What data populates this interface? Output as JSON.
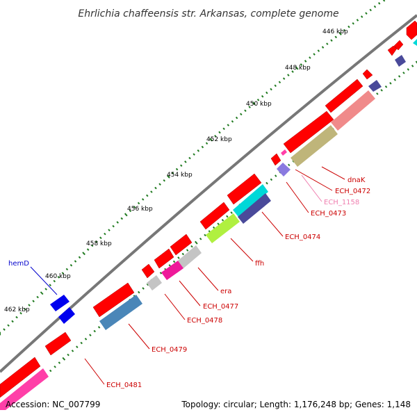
{
  "title": "Ehrlichia chaffeensis str. Arkansas, complete genome",
  "footer": {
    "accession": "Accession: NC_007799",
    "stats": "Topology: circular; Length: 1,176,248 bp; Genes: 1,148"
  },
  "ticks": [
    "446 kbp",
    "448 kbp",
    "450 kbp",
    "452 kbp",
    "454 kbp",
    "456 kbp",
    "458 kbp",
    "460 kbp",
    "462 kbp"
  ],
  "gene_labels": [
    {
      "text": "hemD",
      "color": "#0000cc"
    },
    {
      "text": "dnaK",
      "color": "#cc0000"
    },
    {
      "text": "ECH_0472",
      "color": "#cc0000"
    },
    {
      "text": "ECH_1158",
      "color": "#f07fb0"
    },
    {
      "text": "ECH_0473",
      "color": "#cc0000"
    },
    {
      "text": "ECH_0474",
      "color": "#cc0000"
    },
    {
      "text": "ffh",
      "color": "#cc0000"
    },
    {
      "text": "era",
      "color": "#cc0000"
    },
    {
      "text": "ECH_0477",
      "color": "#cc0000"
    },
    {
      "text": "ECH_0478",
      "color": "#cc0000"
    },
    {
      "text": "ECH_0479",
      "color": "#cc0000"
    },
    {
      "text": "ECH_0481",
      "color": "#cc0000"
    }
  ],
  "colors": {
    "forward_gene": "#ff0000",
    "backbone": "#777777",
    "tick_marks": "#1f7a1f",
    "hemD": "#0000ee",
    "cyan": "#00d8d8",
    "olive": "#bfb57a",
    "salmon": "#f08a8a",
    "slate": "#4a4a9a",
    "violet": "#8a7ae0",
    "lime": "#b0f040",
    "grey": "#c4c4c4",
    "magenta": "#ee1a9a",
    "steelblue": "#4a86b8",
    "pink": "#ff3fa8"
  }
}
